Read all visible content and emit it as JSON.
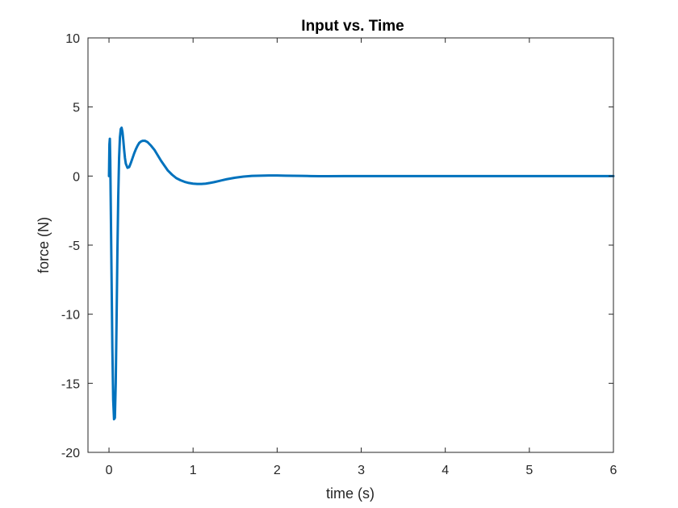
{
  "chart_data": {
    "type": "line",
    "title": "Input vs. Time",
    "xlabel": "time (s)",
    "ylabel": "force (N)",
    "xlim": [
      -0.25,
      6
    ],
    "ylim": [
      -20,
      10
    ],
    "xticks": [
      0,
      1,
      2,
      3,
      4,
      5,
      6
    ],
    "yticks": [
      -20,
      -15,
      -10,
      -5,
      0,
      5,
      10
    ],
    "xtick_labels": [
      "0",
      "1",
      "2",
      "3",
      "4",
      "5",
      "6"
    ],
    "ytick_labels": [
      "-20",
      "-15",
      "-10",
      "-5",
      "0",
      "5",
      "10"
    ],
    "grid": false,
    "legend": "none",
    "line_color": "#0072BD",
    "series": [
      {
        "x": [
          0,
          0.005,
          0.01,
          0.015,
          0.02,
          0.03,
          0.04,
          0.05,
          0.06,
          0.07,
          0.08,
          0.09,
          0.1,
          0.11,
          0.12,
          0.13,
          0.14,
          0.15,
          0.16,
          0.17,
          0.18,
          0.19,
          0.2,
          0.22,
          0.24,
          0.26,
          0.28,
          0.3,
          0.32,
          0.34,
          0.36,
          0.38,
          0.4,
          0.43,
          0.46,
          0.5,
          0.54,
          0.58,
          0.62,
          0.66,
          0.7,
          0.75,
          0.8,
          0.85,
          0.9,
          0.95,
          1.0,
          1.05,
          1.1,
          1.15,
          1.2,
          1.25,
          1.3,
          1.35,
          1.4,
          1.5,
          1.6,
          1.7,
          1.8,
          1.9,
          2.0,
          2.1,
          2.2,
          2.3,
          2.4,
          2.5,
          2.6,
          2.8,
          3.0,
          3.5,
          4.0,
          4.5,
          5.0,
          5.5,
          6.0
        ],
        "y": [
          0.0,
          2.3,
          2.7,
          1.2,
          -1.5,
          -7.0,
          -12.5,
          -16.2,
          -17.6,
          -17.5,
          -15.0,
          -10.5,
          -5.5,
          -1.5,
          1.3,
          2.8,
          3.4,
          3.5,
          3.2,
          2.6,
          1.9,
          1.3,
          0.9,
          0.6,
          0.65,
          0.95,
          1.3,
          1.65,
          1.95,
          2.2,
          2.4,
          2.5,
          2.55,
          2.55,
          2.45,
          2.2,
          1.9,
          1.5,
          1.1,
          0.75,
          0.4,
          0.1,
          -0.15,
          -0.3,
          -0.42,
          -0.5,
          -0.55,
          -0.57,
          -0.57,
          -0.55,
          -0.5,
          -0.44,
          -0.37,
          -0.3,
          -0.23,
          -0.12,
          -0.04,
          0.01,
          0.03,
          0.04,
          0.04,
          0.03,
          0.02,
          0.01,
          0.0,
          -0.01,
          -0.01,
          0.0,
          0.0,
          0.0,
          0.0,
          0.0,
          0.0,
          0.0,
          0.0
        ]
      }
    ]
  }
}
